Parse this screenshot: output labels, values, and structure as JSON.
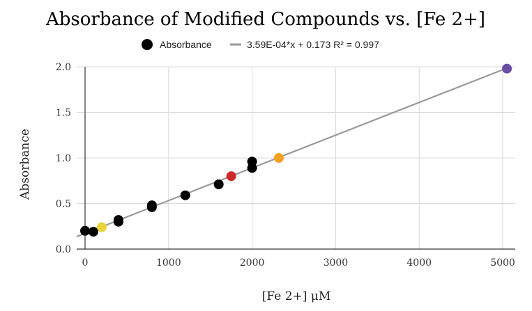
{
  "chart_data": {
    "type": "scatter",
    "title": "Absorbance of Modified Compounds vs. [Fe 2+]",
    "xlabel": "[Fe 2+] μM",
    "ylabel": "Absorbance",
    "xlim": [
      -100,
      5150
    ],
    "ylim": [
      0,
      2.0
    ],
    "xticks": [
      0,
      1000,
      2000,
      3000,
      4000,
      5000
    ],
    "xtick_labels": [
      "0",
      "1000",
      "2000",
      "3000",
      "4000",
      "5000"
    ],
    "yticks": [
      0,
      0.5,
      1.0,
      1.5,
      2.0
    ],
    "ytick_labels": [
      "0.0",
      "0.5",
      "1.0",
      "1.5",
      "2.0"
    ],
    "grid": true,
    "legend_position": "top-center",
    "series": [
      {
        "name": "Absorbance",
        "color": "#000000",
        "points": [
          {
            "x": 0,
            "y": 0.2,
            "color": "#000000"
          },
          {
            "x": 100,
            "y": 0.19,
            "color": "#000000"
          },
          {
            "x": 200,
            "y": 0.24,
            "color": "#e8d43a"
          },
          {
            "x": 400,
            "y": 0.32,
            "color": "#000000"
          },
          {
            "x": 400,
            "y": 0.3,
            "color": "#000000"
          },
          {
            "x": 800,
            "y": 0.48,
            "color": "#000000"
          },
          {
            "x": 800,
            "y": 0.46,
            "color": "#000000"
          },
          {
            "x": 1200,
            "y": 0.59,
            "color": "#000000"
          },
          {
            "x": 1600,
            "y": 0.71,
            "color": "#000000"
          },
          {
            "x": 1750,
            "y": 0.8,
            "color": "#cc2a2a"
          },
          {
            "x": 2000,
            "y": 0.96,
            "color": "#000000"
          },
          {
            "x": 2000,
            "y": 0.89,
            "color": "#000000"
          },
          {
            "x": 2320,
            "y": 1.0,
            "color": "#f3a11f"
          },
          {
            "x": 5050,
            "y": 1.98,
            "color": "#6a4fa3"
          }
        ]
      }
    ],
    "trendline": {
      "label": "3.59E-04*x + 0.173 R² = 0.997",
      "slope": 0.000359,
      "intercept": 0.173,
      "x_range": [
        -100,
        5050
      ],
      "color": "#999999"
    }
  }
}
